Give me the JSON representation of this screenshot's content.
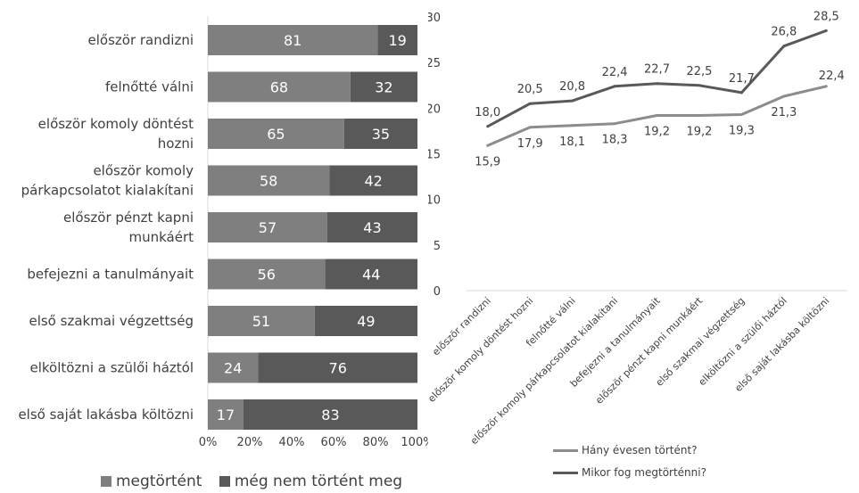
{
  "colors": {
    "done": "#7f7f7f",
    "not_done": "#595959",
    "line_happened": "#8c8c8c",
    "line_expected": "#595959",
    "axis": "#d9d9d9"
  },
  "chart_data": [
    {
      "type": "bar",
      "orientation": "horizontal",
      "stacked": true,
      "categories": [
        "először randizni",
        "felnőtté válni",
        "először komoly döntést hozni",
        "először komoly párkapcsolatot kialakítani",
        "először pénzt kapni munkáért",
        "befejezni a tanulmányait",
        "első szakmai végzettség",
        "elköltözni a szülői háztól",
        "első saját lakásba költözni"
      ],
      "category_lines": [
        [
          "először randizni"
        ],
        [
          "felnőtté válni"
        ],
        [
          "először komoly döntést",
          "hozni"
        ],
        [
          "először komoly",
          "párkapcsolatot kialakítani"
        ],
        [
          "először pénzt kapni",
          "munkáért"
        ],
        [
          "befejezni a tanulmányait"
        ],
        [
          "első szakmai végzettség"
        ],
        [
          "elköltözni a szülői háztól"
        ],
        [
          "első saját lakásba költözni"
        ]
      ],
      "series": [
        {
          "name": "megtörtént",
          "values": [
            81,
            68,
            65,
            58,
            57,
            56,
            51,
            24,
            17
          ]
        },
        {
          "name": "még nem történt meg",
          "values": [
            19,
            32,
            35,
            42,
            43,
            44,
            49,
            76,
            83
          ]
        }
      ],
      "xlim": [
        0,
        100
      ],
      "xticks": [
        "0%",
        "20%",
        "40%",
        "60%",
        "80%",
        "100%"
      ],
      "legend_position": "bottom"
    },
    {
      "type": "line",
      "categories": [
        "először randizni",
        "először komoly döntést hozni",
        "felnőtté válni",
        "először komoly párkapcsolatot kialakítani",
        "befejezni a tanulmányait",
        "először pénzt kapni munkáért",
        "első szakmai végzettség",
        "elköltözni a szülői háztól",
        "első saját lakásba költözni"
      ],
      "series": [
        {
          "name": "Hány évesen történt?",
          "values": [
            15.9,
            17.9,
            18.1,
            18.3,
            19.2,
            19.2,
            19.3,
            21.3,
            22.4
          ],
          "labels": [
            "15,9",
            "17,9",
            "18,1",
            "18,3",
            "19,2",
            "19,2",
            "19,3",
            "21,3",
            "22,4"
          ]
        },
        {
          "name": "Mikor fog megtörténni?",
          "values": [
            18.0,
            20.5,
            20.8,
            22.4,
            22.7,
            22.5,
            21.7,
            26.8,
            28.5
          ],
          "labels": [
            "18,0",
            "20,5",
            "20,8",
            "22,4",
            "22,7",
            "22,5",
            "21,7",
            "26,8",
            "28,5"
          ]
        }
      ],
      "ylim": [
        0,
        30
      ],
      "yticks": [
        "0",
        "5",
        "10",
        "15",
        "20",
        "25",
        "30"
      ],
      "legend_position": "bottom"
    }
  ]
}
